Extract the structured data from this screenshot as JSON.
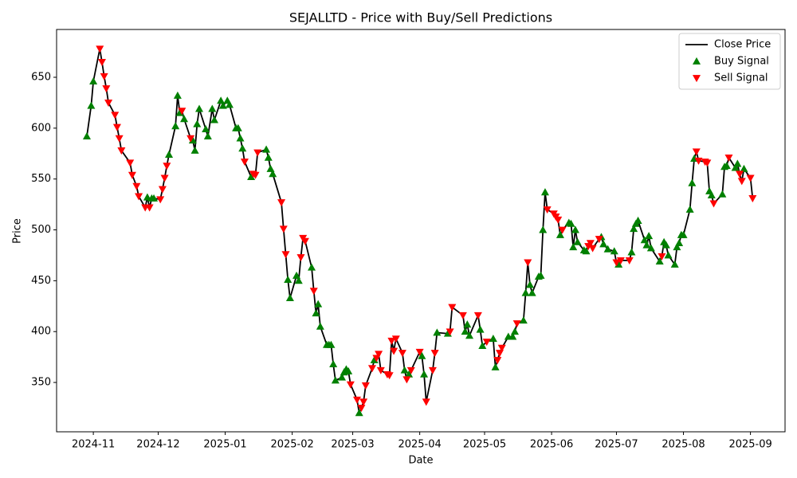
{
  "chart_data": {
    "type": "line",
    "title": "SEJALLTD - Price with Buy/Sell Predictions",
    "xlabel": "Date",
    "ylabel": "Price",
    "legend": "upper right",
    "x": [
      "2024-10-29",
      "2024-10-31",
      "2024-11-01",
      "2024-11-04",
      "2024-11-05",
      "2024-11-06",
      "2024-11-07",
      "2024-11-08",
      "2024-11-11",
      "2024-11-12",
      "2024-11-13",
      "2024-11-14",
      "2024-11-18",
      "2024-11-19",
      "2024-11-21",
      "2024-11-22",
      "2024-11-25",
      "2024-11-26",
      "2024-11-27",
      "2024-11-28",
      "2024-11-29",
      "2024-12-02",
      "2024-12-03",
      "2024-12-04",
      "2024-12-05",
      "2024-12-06",
      "2024-12-09",
      "2024-12-10",
      "2024-12-11",
      "2024-12-12",
      "2024-12-13",
      "2024-12-16",
      "2024-12-17",
      "2024-12-18",
      "2024-12-19",
      "2024-12-20",
      "2024-12-23",
      "2024-12-24",
      "2024-12-26",
      "2024-12-27",
      "2024-12-30",
      "2024-12-31",
      "2025-01-02",
      "2025-01-03",
      "2025-01-06",
      "2025-01-07",
      "2025-01-08",
      "2025-01-09",
      "2025-01-10",
      "2025-01-13",
      "2025-01-14",
      "2025-01-15",
      "2025-01-16",
      "2025-01-20",
      "2025-01-21",
      "2025-01-22",
      "2025-01-23",
      "2025-01-27",
      "2025-01-28",
      "2025-01-29",
      "2025-01-30",
      "2025-01-31",
      "2025-02-03",
      "2025-02-04",
      "2025-02-05",
      "2025-02-06",
      "2025-02-07",
      "2025-02-10",
      "2025-02-11",
      "2025-02-12",
      "2025-02-13",
      "2025-02-14",
      "2025-02-17",
      "2025-02-18",
      "2025-02-19",
      "2025-02-20",
      "2025-02-21",
      "2025-02-24",
      "2025-02-25",
      "2025-02-26",
      "2025-02-27",
      "2025-02-28",
      "2025-03-03",
      "2025-03-04",
      "2025-03-05",
      "2025-03-06",
      "2025-03-07",
      "2025-03-10",
      "2025-03-11",
      "2025-03-12",
      "2025-03-13",
      "2025-03-14",
      "2025-03-17",
      "2025-03-18",
      "2025-03-19",
      "2025-03-20",
      "2025-03-21",
      "2025-03-24",
      "2025-03-25",
      "2025-03-26",
      "2025-03-27",
      "2025-03-28",
      "2025-04-01",
      "2025-04-02",
      "2025-04-03",
      "2025-04-04",
      "2025-04-07",
      "2025-04-08",
      "2025-04-09",
      "2025-04-14",
      "2025-04-15",
      "2025-04-16",
      "2025-04-21",
      "2025-04-22",
      "2025-04-23",
      "2025-04-24",
      "2025-04-28",
      "2025-04-29",
      "2025-04-30",
      "2025-05-02",
      "2025-05-05",
      "2025-05-06",
      "2025-05-07",
      "2025-05-08",
      "2025-05-09",
      "2025-05-12",
      "2025-05-14",
      "2025-05-15",
      "2025-05-16",
      "2025-05-19",
      "2025-05-20",
      "2025-05-21",
      "2025-05-22",
      "2025-05-23",
      "2025-05-26",
      "2025-05-27",
      "2025-05-28",
      "2025-05-29",
      "2025-05-30",
      "2025-06-02",
      "2025-06-03",
      "2025-06-04",
      "2025-06-05",
      "2025-06-06",
      "2025-06-09",
      "2025-06-10",
      "2025-06-11",
      "2025-06-12",
      "2025-06-13",
      "2025-06-16",
      "2025-06-17",
      "2025-06-18",
      "2025-06-19",
      "2025-06-20",
      "2025-06-23",
      "2025-06-24",
      "2025-06-25",
      "2025-06-27",
      "2025-06-30",
      "2025-07-01",
      "2025-07-02",
      "2025-07-03",
      "2025-07-07",
      "2025-07-08",
      "2025-07-09",
      "2025-07-10",
      "2025-07-11",
      "2025-07-14",
      "2025-07-15",
      "2025-07-16",
      "2025-07-17",
      "2025-07-21",
      "2025-07-22",
      "2025-07-23",
      "2025-07-24",
      "2025-07-25",
      "2025-07-28",
      "2025-07-29",
      "2025-07-30",
      "2025-07-31",
      "2025-08-01",
      "2025-08-04",
      "2025-08-05",
      "2025-08-06",
      "2025-08-07",
      "2025-08-08",
      "2025-08-11",
      "2025-08-12",
      "2025-08-13",
      "2025-08-14",
      "2025-08-15",
      "2025-08-19",
      "2025-08-20",
      "2025-08-21",
      "2025-08-22",
      "2025-08-25",
      "2025-08-26",
      "2025-08-27",
      "2025-08-28",
      "2025-08-29",
      "2025-09-01",
      "2025-09-02"
    ],
    "series": [
      {
        "name": "Close Price",
        "color": "#000000",
        "style": "line",
        "values": [
          592,
          622,
          646,
          678,
          665,
          651,
          639,
          625,
          613,
          601,
          590,
          578,
          566,
          554,
          543,
          533,
          522,
          532,
          522,
          531,
          531,
          530,
          540,
          551,
          563,
          574,
          602,
          632,
          615,
          617,
          609,
          590,
          588,
          578,
          604,
          619,
          599,
          592,
          619,
          608,
          627,
          622,
          627,
          623,
          600,
          600,
          590,
          580,
          567,
          552,
          555,
          554,
          576,
          579,
          571,
          560,
          555,
          527,
          501,
          476,
          451,
          433,
          455,
          450,
          473,
          492,
          489,
          463,
          440,
          418,
          427,
          405,
          387,
          387,
          387,
          368,
          352,
          355,
          360,
          363,
          361,
          348,
          333,
          320,
          325,
          331,
          347,
          364,
          372,
          374,
          378,
          362,
          358,
          357,
          391,
          381,
          393,
          379,
          362,
          353,
          358,
          362,
          380,
          376,
          358,
          331,
          362,
          379,
          399,
          398,
          400,
          424,
          416,
          400,
          407,
          396,
          416,
          402,
          386,
          390,
          393,
          365,
          372,
          379,
          384,
          395,
          395,
          400,
          408,
          411,
          438,
          468,
          446,
          438,
          454,
          455,
          500,
          537,
          520,
          516,
          513,
          510,
          495,
          500,
          507,
          506,
          483,
          500,
          488,
          480,
          479,
          484,
          487,
          482,
          491,
          493,
          486,
          481,
          479,
          468,
          466,
          470,
          470,
          478,
          501,
          506,
          509,
          490,
          485,
          494,
          482,
          469,
          474,
          488,
          485,
          475,
          466,
          483,
          487,
          495,
          495,
          520,
          546,
          570,
          577,
          568,
          567,
          566,
          538,
          534,
          526,
          535,
          562,
          563,
          571,
          561,
          565,
          555,
          548,
          560,
          551,
          531
        ]
      },
      {
        "name": "Buy Signal",
        "color": "#008000",
        "style": "scatter",
        "marker": "triangle-up",
        "values": [
          592,
          622,
          646,
          null,
          null,
          null,
          null,
          null,
          null,
          null,
          null,
          null,
          null,
          null,
          null,
          null,
          null,
          532,
          null,
          531,
          531,
          null,
          null,
          null,
          null,
          574,
          602,
          632,
          615,
          null,
          609,
          null,
          588,
          578,
          604,
          619,
          599,
          592,
          619,
          608,
          627,
          622,
          627,
          623,
          600,
          600,
          590,
          580,
          null,
          552,
          null,
          null,
          null,
          579,
          571,
          560,
          555,
          null,
          null,
          null,
          451,
          433,
          455,
          450,
          null,
          null,
          null,
          463,
          null,
          418,
          427,
          405,
          387,
          387,
          387,
          368,
          352,
          355,
          360,
          363,
          361,
          null,
          null,
          320,
          null,
          null,
          null,
          null,
          372,
          null,
          null,
          null,
          null,
          null,
          null,
          null,
          null,
          null,
          362,
          null,
          358,
          null,
          null,
          376,
          358,
          null,
          null,
          null,
          399,
          398,
          null,
          null,
          null,
          400,
          407,
          396,
          null,
          402,
          386,
          null,
          393,
          365,
          null,
          null,
          null,
          395,
          395,
          400,
          null,
          411,
          438,
          null,
          446,
          438,
          454,
          455,
          500,
          537,
          null,
          null,
          null,
          null,
          495,
          null,
          507,
          506,
          483,
          500,
          488,
          480,
          479,
          null,
          null,
          null,
          null,
          493,
          486,
          481,
          479,
          null,
          466,
          null,
          null,
          478,
          501,
          506,
          509,
          490,
          485,
          494,
          482,
          469,
          null,
          488,
          485,
          475,
          466,
          483,
          487,
          495,
          495,
          520,
          546,
          570,
          null,
          null,
          null,
          null,
          538,
          534,
          null,
          535,
          562,
          563,
          null,
          561,
          565,
          null,
          null,
          560,
          null,
          null
        ]
      },
      {
        "name": "Sell Signal",
        "color": "#ff0000",
        "style": "scatter",
        "marker": "triangle-down",
        "values": [
          null,
          null,
          null,
          678,
          665,
          651,
          639,
          625,
          613,
          601,
          590,
          578,
          566,
          554,
          543,
          533,
          522,
          null,
          522,
          null,
          null,
          530,
          540,
          551,
          563,
          null,
          null,
          null,
          null,
          617,
          null,
          590,
          null,
          null,
          null,
          null,
          null,
          null,
          null,
          null,
          null,
          null,
          null,
          null,
          null,
          null,
          null,
          null,
          567,
          null,
          555,
          554,
          576,
          null,
          null,
          null,
          null,
          527,
          501,
          476,
          null,
          null,
          null,
          null,
          473,
          492,
          489,
          null,
          440,
          null,
          null,
          null,
          null,
          null,
          null,
          null,
          null,
          null,
          null,
          null,
          null,
          348,
          333,
          null,
          325,
          331,
          347,
          364,
          null,
          374,
          378,
          362,
          358,
          357,
          391,
          381,
          393,
          379,
          null,
          353,
          null,
          362,
          380,
          null,
          null,
          331,
          362,
          379,
          null,
          null,
          400,
          424,
          416,
          null,
          null,
          null,
          416,
          null,
          null,
          390,
          null,
          null,
          372,
          379,
          384,
          null,
          null,
          null,
          408,
          null,
          null,
          468,
          null,
          null,
          null,
          null,
          null,
          null,
          520,
          516,
          513,
          510,
          null,
          500,
          null,
          null,
          null,
          null,
          null,
          null,
          null,
          484,
          487,
          482,
          491,
          null,
          null,
          null,
          null,
          468,
          null,
          470,
          470,
          null,
          null,
          null,
          null,
          null,
          null,
          null,
          null,
          null,
          474,
          null,
          null,
          null,
          null,
          null,
          null,
          null,
          null,
          null,
          null,
          null,
          577,
          568,
          567,
          566,
          null,
          null,
          526,
          null,
          null,
          null,
          571,
          null,
          null,
          555,
          548,
          null,
          551,
          531
        ]
      }
    ],
    "xlim": [
      "2024-10-15",
      "2025-09-17"
    ],
    "xticks": [
      {
        "value": "2024-11-01",
        "label": "2024-11"
      },
      {
        "value": "2024-12-01",
        "label": "2024-12"
      },
      {
        "value": "2025-01-01",
        "label": "2025-01"
      },
      {
        "value": "2025-02-01",
        "label": "2025-02"
      },
      {
        "value": "2025-03-01",
        "label": "2025-03"
      },
      {
        "value": "2025-04-01",
        "label": "2025-04"
      },
      {
        "value": "2025-05-01",
        "label": "2025-05"
      },
      {
        "value": "2025-06-01",
        "label": "2025-06"
      },
      {
        "value": "2025-07-01",
        "label": "2025-07"
      },
      {
        "value": "2025-08-01",
        "label": "2025-08"
      },
      {
        "value": "2025-09-01",
        "label": "2025-09"
      }
    ],
    "ylim": [
      301.5,
      697
    ],
    "yticks": [
      350,
      400,
      450,
      500,
      550,
      600,
      650
    ],
    "grid": false
  }
}
